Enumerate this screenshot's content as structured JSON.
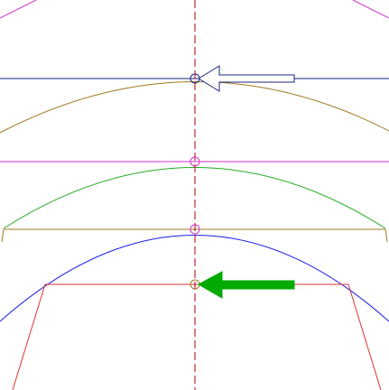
{
  "colors": {
    "background": "#ffffff",
    "axis": "#b00000",
    "magenta": "#cc33cc",
    "navy": "#1a237e",
    "olive_brown": "#a07820",
    "green": "#22aa22",
    "blue": "#1a1aee",
    "red": "#dd3333",
    "arrow_outline": "#1a237e",
    "arrow_fill": "#00aa00"
  },
  "icons": {
    "outline_arrow": "arrow-left-outline-icon",
    "filled_arrow": "arrow-left-filled-icon"
  }
}
